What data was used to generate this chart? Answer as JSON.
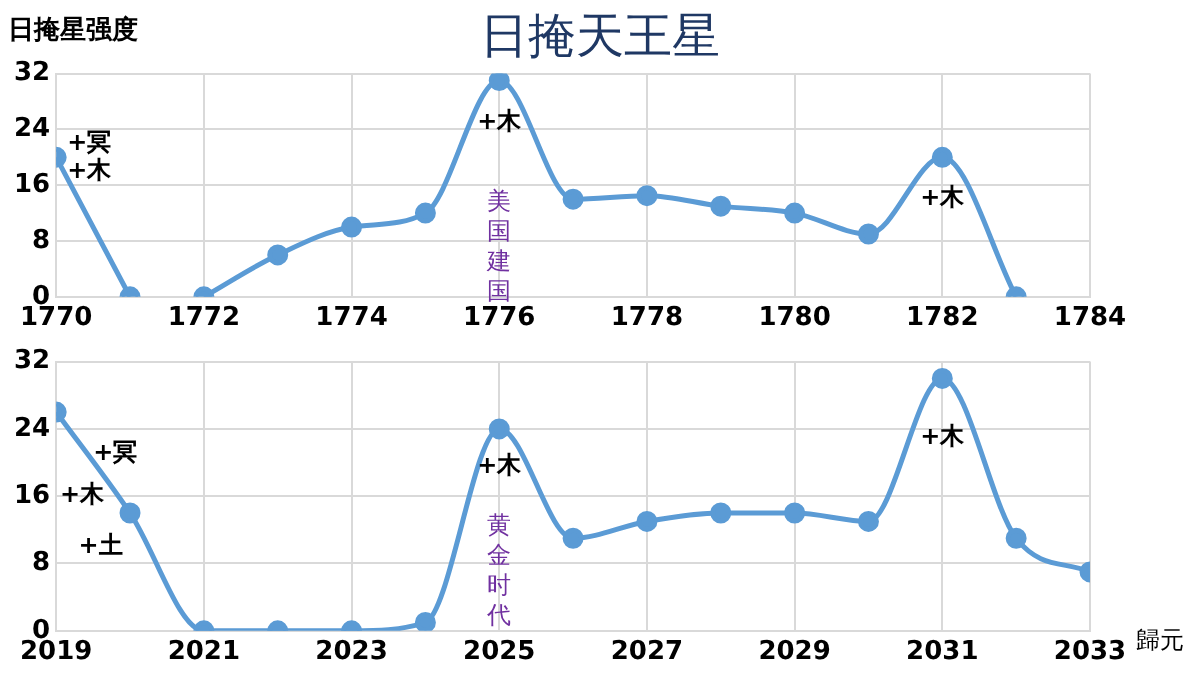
{
  "chart_data": [
    {
      "type": "line",
      "title": "日掩天王星",
      "ylabel": "日掩星强度",
      "xlim": [
        1770,
        1784
      ],
      "xticks": [
        1770,
        1772,
        1774,
        1776,
        1778,
        1780,
        1782,
        1784
      ],
      "ylim": [
        0,
        32
      ],
      "yticks": [
        0,
        8,
        16,
        24,
        32
      ],
      "grid": true,
      "legend": false,
      "marker": "circle",
      "series": [
        {
          "color": "#5b9bd5",
          "x": [
            1770,
            1771
          ],
          "values": [
            20,
            0
          ]
        },
        {
          "color": "#5b9bd5",
          "x": [
            1772,
            1773,
            1774,
            1775,
            1776,
            1777,
            1778,
            1779,
            1780,
            1781,
            1782,
            1783
          ],
          "values": [
            0,
            6,
            10,
            12,
            31,
            14,
            14.5,
            13,
            12,
            9,
            20,
            0
          ]
        }
      ],
      "annotations": [
        "+冥",
        "+木",
        "+木",
        "美国建国",
        "+木"
      ]
    },
    {
      "type": "line",
      "xlabel": "歸元",
      "xlim": [
        2019,
        2033
      ],
      "xticks": [
        2019,
        2021,
        2023,
        2025,
        2027,
        2029,
        2031,
        2033
      ],
      "ylim": [
        0,
        32
      ],
      "yticks": [
        0,
        8,
        16,
        24,
        32
      ],
      "grid": true,
      "legend": false,
      "marker": "circle",
      "series": [
        {
          "color": "#5b9bd5",
          "x": [
            2019,
            2020,
            2021,
            2022,
            2023,
            2024,
            2025,
            2026,
            2027,
            2028,
            2029,
            2030,
            2031,
            2032,
            2033
          ],
          "values": [
            26,
            14,
            0,
            0,
            0,
            1,
            24,
            11,
            13,
            14,
            14,
            13,
            30,
            11,
            7
          ]
        }
      ],
      "annotations": [
        "+冥",
        "+木",
        "+土",
        "+木",
        "黄金时代",
        "+木"
      ]
    }
  ]
}
